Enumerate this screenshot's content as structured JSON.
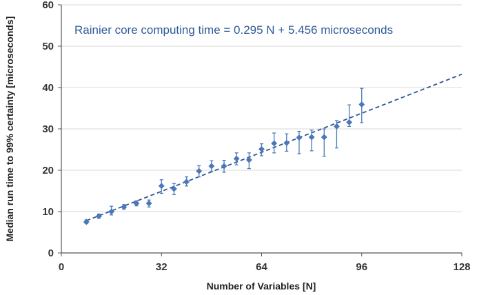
{
  "chart_data": {
    "type": "scatter",
    "title": "",
    "xlabel": "Number of Variables [N]",
    "ylabel": "Median run time to 99% certainty [microseconds]",
    "xlim": [
      0,
      128
    ],
    "ylim": [
      0,
      60
    ],
    "xticks": [
      0,
      32,
      64,
      96,
      128
    ],
    "yticks": [
      0,
      10,
      20,
      30,
      40,
      50,
      60
    ],
    "grid": "horizontal",
    "annotation": "Rainier core computing time = 0.295 N + 5.456 microseconds",
    "fit": {
      "slope": 0.295,
      "intercept": 5.456,
      "x_start": 8,
      "x_end": 128,
      "style": "dashed"
    },
    "series": [
      {
        "name": "Median run time",
        "marker": "diamond",
        "points": [
          {
            "x": 8,
            "y": 7.5,
            "ylow": 7.1,
            "yhigh": 8.0
          },
          {
            "x": 12,
            "y": 8.9,
            "ylow": 8.4,
            "yhigh": 9.4
          },
          {
            "x": 16,
            "y": 10.0,
            "ylow": 9.2,
            "yhigh": 11.3
          },
          {
            "x": 20,
            "y": 11.1,
            "ylow": 10.6,
            "yhigh": 11.7
          },
          {
            "x": 24,
            "y": 12.0,
            "ylow": 11.4,
            "yhigh": 12.6
          },
          {
            "x": 28,
            "y": 12.0,
            "ylow": 11.1,
            "yhigh": 12.8
          },
          {
            "x": 32,
            "y": 16.2,
            "ylow": 14.4,
            "yhigh": 17.7
          },
          {
            "x": 36,
            "y": 15.5,
            "ylow": 14.1,
            "yhigh": 16.8
          },
          {
            "x": 40,
            "y": 17.2,
            "ylow": 16.2,
            "yhigh": 18.4
          },
          {
            "x": 44,
            "y": 19.8,
            "ylow": 18.4,
            "yhigh": 21.1
          },
          {
            "x": 48,
            "y": 21.0,
            "ylow": 19.7,
            "yhigh": 22.3
          },
          {
            "x": 52,
            "y": 21.0,
            "ylow": 19.5,
            "yhigh": 22.4
          },
          {
            "x": 56,
            "y": 22.8,
            "ylow": 21.3,
            "yhigh": 24.2
          },
          {
            "x": 60,
            "y": 22.5,
            "ylow": 20.4,
            "yhigh": 24.2
          },
          {
            "x": 64,
            "y": 25.1,
            "ylow": 23.5,
            "yhigh": 26.4
          },
          {
            "x": 68,
            "y": 26.5,
            "ylow": 24.2,
            "yhigh": 29.0
          },
          {
            "x": 72,
            "y": 26.6,
            "ylow": 24.6,
            "yhigh": 28.8
          },
          {
            "x": 76,
            "y": 27.9,
            "ylow": 24.0,
            "yhigh": 29.4
          },
          {
            "x": 80,
            "y": 28.0,
            "ylow": 24.7,
            "yhigh": 29.7
          },
          {
            "x": 84,
            "y": 28.0,
            "ylow": 23.4,
            "yhigh": 30.0
          },
          {
            "x": 88,
            "y": 30.6,
            "ylow": 25.4,
            "yhigh": 32.0
          },
          {
            "x": 92,
            "y": 31.6,
            "ylow": 30.6,
            "yhigh": 35.8
          },
          {
            "x": 96,
            "y": 35.9,
            "ylow": 31.5,
            "yhigh": 39.8
          }
        ]
      }
    ],
    "colors": {
      "marker": "#4a78b8",
      "errorbar": "#4a78b8",
      "fit_line": "#2f5597",
      "annotation": "#2e5b9a",
      "grid": "#d9d9d9",
      "axis": "#555555"
    }
  }
}
